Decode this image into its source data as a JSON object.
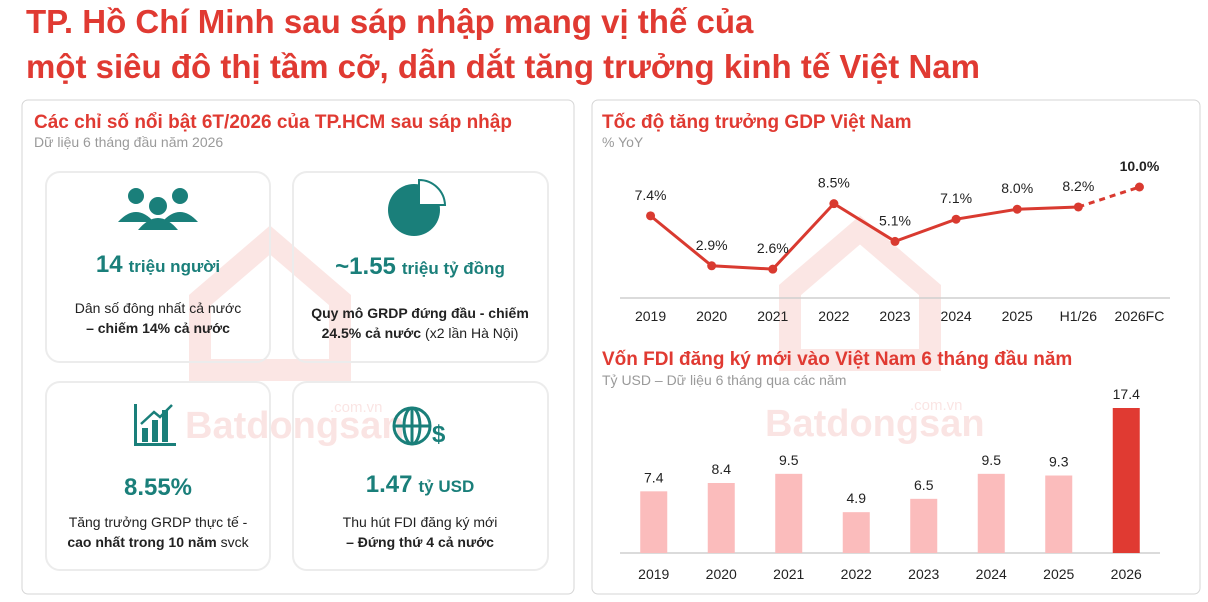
{
  "header": {
    "title_lines": [
      "TP. Hồ Chí Minh sau sáp nhập mang vị thế của",
      "một siêu đô thị tầm cỡ, dẫn dắt tăng trưởng kinh tế Việt Nam"
    ]
  },
  "watermark": {
    "brand": "Batdongsan",
    "domain": ".com.vn"
  },
  "highlights": {
    "title": "Các chỉ số nổi bật 6T/2026 của TP.HCM sau sáp nhập",
    "subtitle": "Dữ liệu 6 tháng đầu năm 2026",
    "cards": [
      {
        "value": "14",
        "unit": "triệu người",
        "lines": [
          [
            {
              "text": "Dân số đông nhất cả nước",
              "bold": false
            }
          ],
          [
            {
              "text": "– chiếm 14% cả nước",
              "bold": true
            }
          ]
        ]
      },
      {
        "value": "~1.55",
        "unit": "triệu tỷ đồng",
        "lines": [
          [
            {
              "text": "Quy mô GRDP đứng đầu - chiếm",
              "bold": true
            }
          ],
          [
            {
              "text": "24.5% cả nước",
              "bold": true
            },
            {
              "text": "(x2 lần Hà Nội)",
              "bold": false
            }
          ]
        ]
      },
      {
        "value": "8.55%",
        "lines": [
          [
            {
              "text": "Tăng trưởng GRDP thực tế -",
              "bold": false
            }
          ],
          [
            {
              "text": "cao nhất trong 10 năm",
              "bold": true
            },
            {
              "text": "svck",
              "bold": false
            }
          ]
        ]
      },
      {
        "value": "1.47",
        "unit": "tỷ USD",
        "lines": [
          [
            {
              "text": "Thu hút FDI đăng ký mới",
              "bold": false
            }
          ],
          [
            {
              "text": "– Đứng thứ 4 cả nước",
              "bold": true
            }
          ]
        ]
      }
    ]
  },
  "chart_data": [
    {
      "type": "line",
      "title": "Tốc độ tăng trưởng GDP Việt Nam",
      "subtitle": "% YoY",
      "categories": [
        "2019",
        "2020",
        "2021",
        "2022",
        "2023",
        "2024",
        "2025",
        "H1/26",
        "2026FC"
      ],
      "values": [
        7.4,
        2.9,
        2.6,
        8.5,
        5.1,
        7.1,
        8.0,
        8.2,
        10.0
      ],
      "value_labels": [
        "7.4%",
        "2.9%",
        "2.6%",
        "8.5%",
        "5.1%",
        "7.1%",
        "8.0%",
        "8.2%",
        "10.0%"
      ],
      "color": "#d93a30",
      "dashed_last_segment": true,
      "highlight_last": true,
      "ylim": [
        0,
        10
      ]
    },
    {
      "type": "bar",
      "title": "Vốn FDI đăng ký mới vào Việt Nam 6 tháng đầu năm",
      "subtitle": "Tỷ USD – Dữ liệu 6 tháng qua các năm",
      "categories": [
        "2019",
        "2020",
        "2021",
        "2022",
        "2023",
        "2024",
        "2025",
        "2026"
      ],
      "values": [
        7.4,
        8.4,
        9.5,
        4.9,
        6.5,
        9.5,
        9.3,
        17.4
      ],
      "color": "#fbbcbc",
      "highlight_color": "#e03a32",
      "highlight_last": true,
      "ylim": [
        0,
        18
      ]
    }
  ]
}
